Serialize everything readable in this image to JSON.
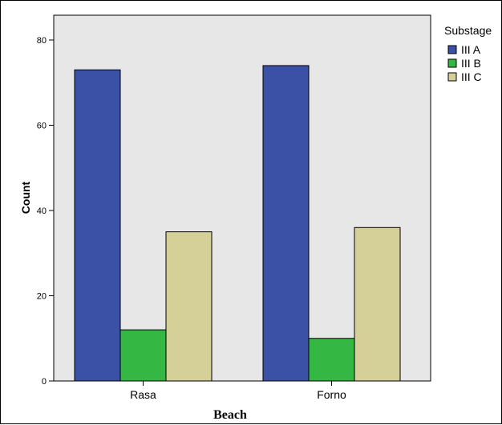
{
  "chart_data": {
    "type": "bar",
    "categories": [
      "Rasa",
      "Forno"
    ],
    "series": [
      {
        "name": "III A",
        "values": [
          73,
          74
        ],
        "color": "#3a51a6"
      },
      {
        "name": "III B",
        "values": [
          12,
          10
        ],
        "color": "#35b843"
      },
      {
        "name": "III C",
        "values": [
          35,
          36
        ],
        "color": "#d5cf98"
      }
    ],
    "xlabel": "Beach",
    "ylabel": "Count",
    "ylim": [
      0,
      80
    ],
    "yticks": [
      0,
      20,
      40,
      60,
      80
    ],
    "grid": false,
    "legend_title": "Substage",
    "legend_position": "top-right",
    "plot_background": "#e7e7e7"
  }
}
